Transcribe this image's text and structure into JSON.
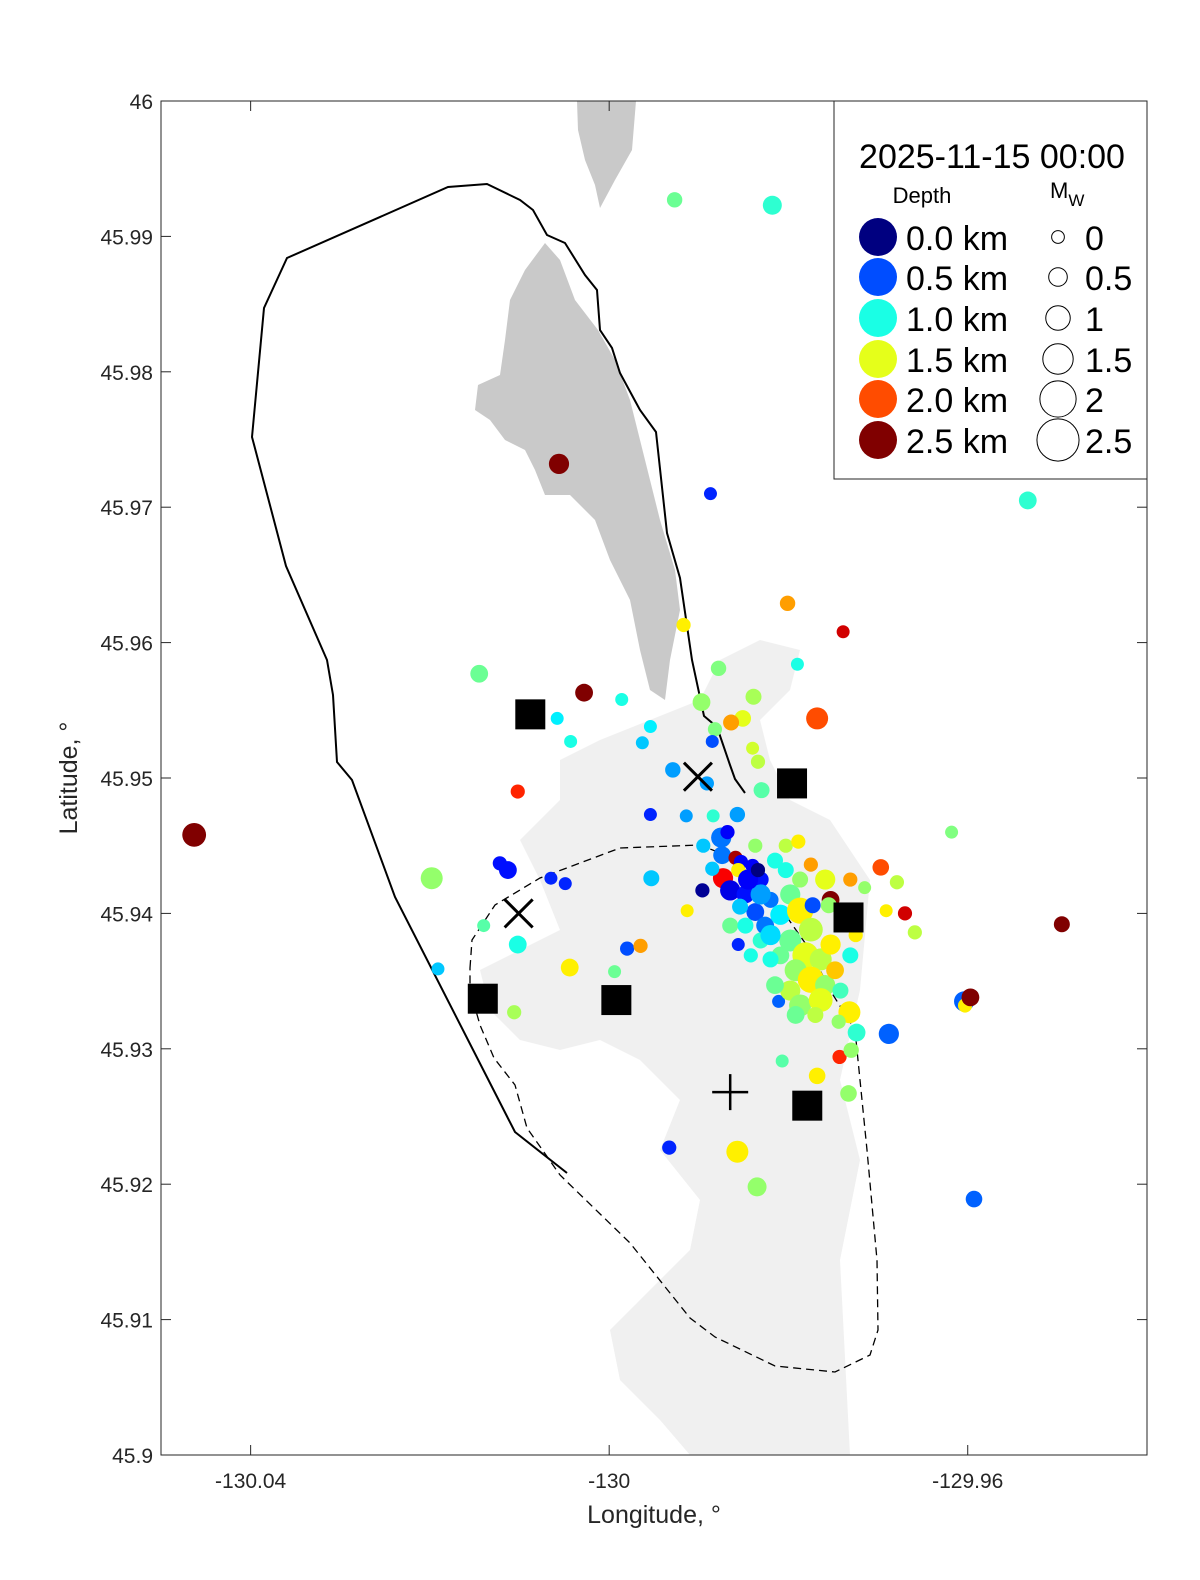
{
  "chart_data": {
    "type": "scatter",
    "title": "2025-11-15 00:00",
    "xlabel": "Longitude, °",
    "ylabel": "Latitude, °",
    "xlim": [
      -130.05,
      -129.94
    ],
    "ylim": [
      45.9,
      46
    ],
    "xticks": [
      -130.04,
      -130,
      -129.96
    ],
    "xtick_labels": [
      "-130.04",
      "-130",
      "-129.96"
    ],
    "yticks": [
      45.9,
      45.91,
      45.92,
      45.93,
      45.94,
      45.95,
      45.96,
      45.97,
      45.98,
      45.99,
      46
    ],
    "ytick_labels": [
      "45.9",
      "45.91",
      "45.92",
      "45.93",
      "45.94",
      "45.95",
      "45.96",
      "45.97",
      "45.98",
      "45.99",
      "46"
    ],
    "grid": false,
    "colormap": "jet",
    "color_range_km": [
      0,
      2.5
    ],
    "legend": {
      "placement": "top-right",
      "depth_title": "Depth",
      "mw_title": "M",
      "mw_subscript": "W",
      "depth_entries": [
        {
          "depth": 0.0,
          "label": "0.0 km"
        },
        {
          "depth": 0.5,
          "label": "0.5 km"
        },
        {
          "depth": 1.0,
          "label": "1.0 km"
        },
        {
          "depth": 1.5,
          "label": "1.5 km"
        },
        {
          "depth": 2.0,
          "label": "2.0 km"
        },
        {
          "depth": 2.5,
          "label": "2.5 km"
        }
      ],
      "mw_entries": [
        {
          "mw": 0,
          "label": "0"
        },
        {
          "mw": 0.5,
          "label": "0.5"
        },
        {
          "mw": 1,
          "label": "1"
        },
        {
          "mw": 1.5,
          "label": "1.5"
        },
        {
          "mw": 2,
          "label": "2"
        },
        {
          "mw": 2.5,
          "label": "2.5"
        }
      ]
    },
    "point_fields": [
      "lon",
      "lat",
      "depth_km",
      "mw"
    ],
    "points": [
      [
        -129.9927,
        45.9927,
        1.2,
        0.2
      ],
      [
        -129.9818,
        45.9923,
        1.05,
        0.5
      ],
      [
        -130.0056,
        45.9732,
        2.5,
        0.6
      ],
      [
        -129.9887,
        45.971,
        0.4,
        0
      ],
      [
        -129.9533,
        45.9705,
        1.05,
        0.4
      ],
      [
        -129.9801,
        45.9629,
        1.8,
        0.2
      ],
      [
        -129.9739,
        45.9608,
        2.3,
        0
      ],
      [
        -129.9917,
        45.9613,
        1.6,
        0.1
      ],
      [
        -129.9878,
        45.9581,
        1.25,
        0.2
      ],
      [
        -129.979,
        45.9584,
        1.0,
        0
      ],
      [
        -130.0145,
        45.9577,
        1.2,
        0.4
      ],
      [
        -130.0028,
        45.9563,
        2.5,
        0.4
      ],
      [
        -129.9986,
        45.9558,
        1.0,
        0
      ],
      [
        -130.0058,
        45.9544,
        0.9,
        0
      ],
      [
        -130.0043,
        45.9527,
        1.0,
        0
      ],
      [
        -129.9954,
        45.9538,
        0.9,
        0
      ],
      [
        -129.9963,
        45.9526,
        0.8,
        0
      ],
      [
        -129.9897,
        45.9556,
        1.3,
        0.4
      ],
      [
        -129.9839,
        45.956,
        1.35,
        0.25
      ],
      [
        -129.9851,
        45.9544,
        1.5,
        0.3
      ],
      [
        -129.9864,
        45.9541,
        1.8,
        0.25
      ],
      [
        -129.9768,
        45.9544,
        2.0,
        0.75
      ],
      [
        -129.9882,
        45.9536,
        1.25,
        0.1
      ],
      [
        -129.984,
        45.9522,
        1.45,
        0
      ],
      [
        -129.9834,
        45.9512,
        1.4,
        0.1
      ],
      [
        -129.9885,
        45.9527,
        0.5,
        0
      ],
      [
        -129.9929,
        45.9506,
        0.7,
        0.2
      ],
      [
        -129.9891,
        45.9496,
        0.7,
        0.1
      ],
      [
        -129.983,
        45.9491,
        1.15,
        0.25
      ],
      [
        -130.0102,
        45.949,
        2.1,
        0.1
      ],
      [
        -130.0463,
        45.9458,
        2.5,
        0.9
      ],
      [
        -129.9954,
        45.9473,
        0.4,
        0
      ],
      [
        -129.9914,
        45.9472,
        0.7,
        0
      ],
      [
        -129.9884,
        45.9472,
        1.05,
        0
      ],
      [
        -129.9857,
        45.9473,
        0.7,
        0.2
      ],
      [
        -129.9618,
        45.946,
        1.25,
        0
      ],
      [
        -129.9875,
        45.9456,
        0.6,
        0.6
      ],
      [
        -130.0198,
        45.9426,
        1.3,
        0.75
      ],
      [
        -130.0122,
        45.9437,
        0.35,
        0.1
      ],
      [
        -130.0113,
        45.9432,
        0.35,
        0.4
      ],
      [
        -130.0065,
        45.9426,
        0.4,
        0
      ],
      [
        -130.0049,
        45.9422,
        0.4,
        0
      ],
      [
        -129.9953,
        45.9426,
        0.8,
        0.25
      ],
      [
        -129.9896,
        45.9417,
        0.05,
        0.1
      ],
      [
        -129.9913,
        45.9402,
        1.6,
        0
      ],
      [
        -129.9697,
        45.9434,
        2.0,
        0.3
      ],
      [
        -129.9679,
        45.9423,
        1.4,
        0.1
      ],
      [
        -129.9715,
        45.9419,
        1.3,
        0
      ],
      [
        -129.9691,
        45.9402,
        1.6,
        0
      ],
      [
        -129.967,
        45.94,
        2.3,
        0.1
      ],
      [
        -129.9659,
        45.9386,
        1.4,
        0.1
      ],
      [
        -129.9495,
        45.9392,
        2.5,
        0.25
      ],
      [
        -130.014,
        45.9391,
        1.15,
        0
      ],
      [
        -130.0102,
        45.9377,
        1.0,
        0.4
      ],
      [
        -130.0191,
        45.9359,
        0.8,
        0
      ],
      [
        -130.0044,
        45.936,
        1.6,
        0.4
      ],
      [
        -129.9994,
        45.9357,
        1.2,
        0
      ],
      [
        -129.998,
        45.9374,
        0.5,
        0.1
      ],
      [
        -129.9965,
        45.9376,
        1.8,
        0.1
      ],
      [
        -130.0106,
        45.9327,
        1.35,
        0.1
      ],
      [
        -129.9604,
        45.9335,
        0.55,
        0.6
      ],
      [
        -129.9603,
        45.9332,
        1.6,
        0.1
      ],
      [
        -129.9597,
        45.9338,
        2.5,
        0.4
      ],
      [
        -129.9688,
        45.9311,
        0.55,
        0.6
      ],
      [
        -129.9807,
        45.9291,
        1.15,
        0
      ],
      [
        -129.9768,
        45.928,
        1.6,
        0.3
      ],
      [
        -129.9743,
        45.9294,
        2.1,
        0.1
      ],
      [
        -129.9733,
        45.9267,
        1.3,
        0.3
      ],
      [
        -129.973,
        45.9299,
        1.3,
        0.2
      ],
      [
        -129.9724,
        45.9312,
        1.05,
        0.4
      ],
      [
        -129.9732,
        45.9327,
        1.6,
        0.75
      ],
      [
        -129.9933,
        45.9227,
        0.4,
        0.1
      ],
      [
        -129.9857,
        45.9224,
        1.6,
        0.75
      ],
      [
        -129.9835,
        45.9198,
        1.3,
        0.5
      ],
      [
        -129.9593,
        45.9189,
        0.55,
        0.3
      ],
      [
        -129.9856,
        45.9377,
        0.4,
        0
      ],
      [
        -129.9811,
        45.9335,
        0.55,
        0
      ],
      [
        -129.9874,
        45.9443,
        0.6,
        0.4
      ],
      [
        -129.9859,
        45.9441,
        2.4,
        0.1
      ],
      [
        -129.9853,
        45.9438,
        0.3,
        0.1
      ],
      [
        -129.984,
        45.9435,
        0.3,
        0.1
      ],
      [
        -129.9873,
        45.9426,
        2.2,
        0.6
      ],
      [
        -129.9856,
        45.9432,
        1.6,
        0.1
      ],
      [
        -129.9865,
        45.9417,
        0.25,
        0.6
      ],
      [
        -129.9848,
        45.9414,
        0.35,
        0.4
      ],
      [
        -129.9831,
        45.9425,
        0.35,
        0.25
      ],
      [
        -129.982,
        45.941,
        0.6,
        0.25
      ],
      [
        -129.9837,
        45.9401,
        0.5,
        0.4
      ],
      [
        -129.9854,
        45.9405,
        0.8,
        0.25
      ],
      [
        -129.9826,
        45.9391,
        0.6,
        0.4
      ],
      [
        -129.9809,
        45.9399,
        0.9,
        0.6
      ],
      [
        -129.9798,
        45.9414,
        1.2,
        0.6
      ],
      [
        -129.9787,
        45.9425,
        1.3,
        0.25
      ],
      [
        -129.9775,
        45.9436,
        1.8,
        0.1
      ],
      [
        -129.9759,
        45.9425,
        1.5,
        0.6
      ],
      [
        -129.9753,
        45.941,
        2.5,
        0.4
      ],
      [
        -129.9736,
        45.9399,
        1.4,
        0.4
      ],
      [
        -129.9787,
        45.9402,
        1.6,
        1.1
      ],
      [
        -129.9775,
        45.9388,
        1.4,
        0.9
      ],
      [
        -129.9798,
        45.938,
        1.2,
        0.75
      ],
      [
        -129.9781,
        45.9369,
        1.5,
        1.1
      ],
      [
        -129.9764,
        45.9366,
        1.4,
        0.75
      ],
      [
        -129.9753,
        45.9377,
        1.6,
        0.6
      ],
      [
        -129.9809,
        45.9369,
        1.2,
        0.4
      ],
      [
        -129.982,
        45.9366,
        1.0,
        0.25
      ],
      [
        -129.9792,
        45.9358,
        1.3,
        0.75
      ],
      [
        -129.9775,
        45.9351,
        1.6,
        1.1
      ],
      [
        -129.9759,
        45.9347,
        1.3,
        0.6
      ],
      [
        -129.9748,
        45.9358,
        1.7,
        0.4
      ],
      [
        -129.9798,
        45.9343,
        1.4,
        0.6
      ],
      [
        -129.9787,
        45.9332,
        1.3,
        0.75
      ],
      [
        -129.9764,
        45.9336,
        1.5,
        0.9
      ],
      [
        -129.9742,
        45.9343,
        1.1,
        0.25
      ],
      [
        -129.9731,
        45.9369,
        1.0,
        0.25
      ],
      [
        -129.9725,
        45.9384,
        1.6,
        0.1
      ],
      [
        -129.9831,
        45.938,
        1.05,
        0.25
      ],
      [
        -129.9842,
        45.9369,
        1.0,
        0.1
      ],
      [
        -129.9815,
        45.9347,
        1.2,
        0.4
      ],
      [
        -129.9792,
        45.9325,
        1.2,
        0.4
      ],
      [
        -129.977,
        45.9325,
        1.4,
        0.25
      ],
      [
        -129.9865,
        45.9391,
        1.2,
        0.25
      ],
      [
        -129.9837,
        45.945,
        1.3,
        0.1
      ],
      [
        -129.9803,
        45.945,
        1.4,
        0.1
      ],
      [
        -129.9815,
        45.9439,
        1.0,
        0.25
      ],
      [
        -129.9803,
        45.9432,
        1.0,
        0.25
      ],
      [
        -129.9831,
        45.9414,
        0.7,
        0.6
      ],
      [
        -129.982,
        45.9384,
        0.85,
        0.6
      ],
      [
        -129.9848,
        45.9391,
        1.0,
        0.25
      ],
      [
        -129.9773,
        45.9406,
        0.5,
        0.25
      ],
      [
        -129.9755,
        45.9406,
        1.3,
        0.25
      ],
      [
        -129.9731,
        45.9425,
        1.8,
        0.1
      ],
      [
        -129.9789,
        45.9453,
        1.6,
        0.1
      ],
      [
        -129.9744,
        45.932,
        1.3,
        0.1
      ],
      [
        -129.9868,
        45.946,
        0.3,
        0.1
      ],
      [
        -129.9895,
        45.945,
        0.8,
        0.1
      ],
      [
        -129.9885,
        45.9433,
        0.8,
        0.1
      ],
      [
        -129.9845,
        45.9425,
        0.3,
        0.6
      ],
      [
        -129.9834,
        45.9432,
        0.0,
        0.1
      ]
    ],
    "stations": [
      [
        -130.0088,
        45.9547
      ],
      [
        -129.9796,
        45.9496
      ],
      [
        -129.9733,
        45.9397
      ],
      [
        -130.0141,
        45.9337
      ],
      [
        -129.9992,
        45.9336
      ],
      [
        -129.9779,
        45.9258
      ]
    ],
    "x_markers": [
      [
        -129.9901,
        45.9501
      ],
      [
        -130.0101,
        45.94
      ]
    ],
    "plus_markers": [
      [
        -129.9865,
        45.9268
      ]
    ],
    "colors": {
      "land_dark": "#c9c9c9",
      "land_light": "#f0f0f0",
      "outline": "#000000"
    }
  }
}
